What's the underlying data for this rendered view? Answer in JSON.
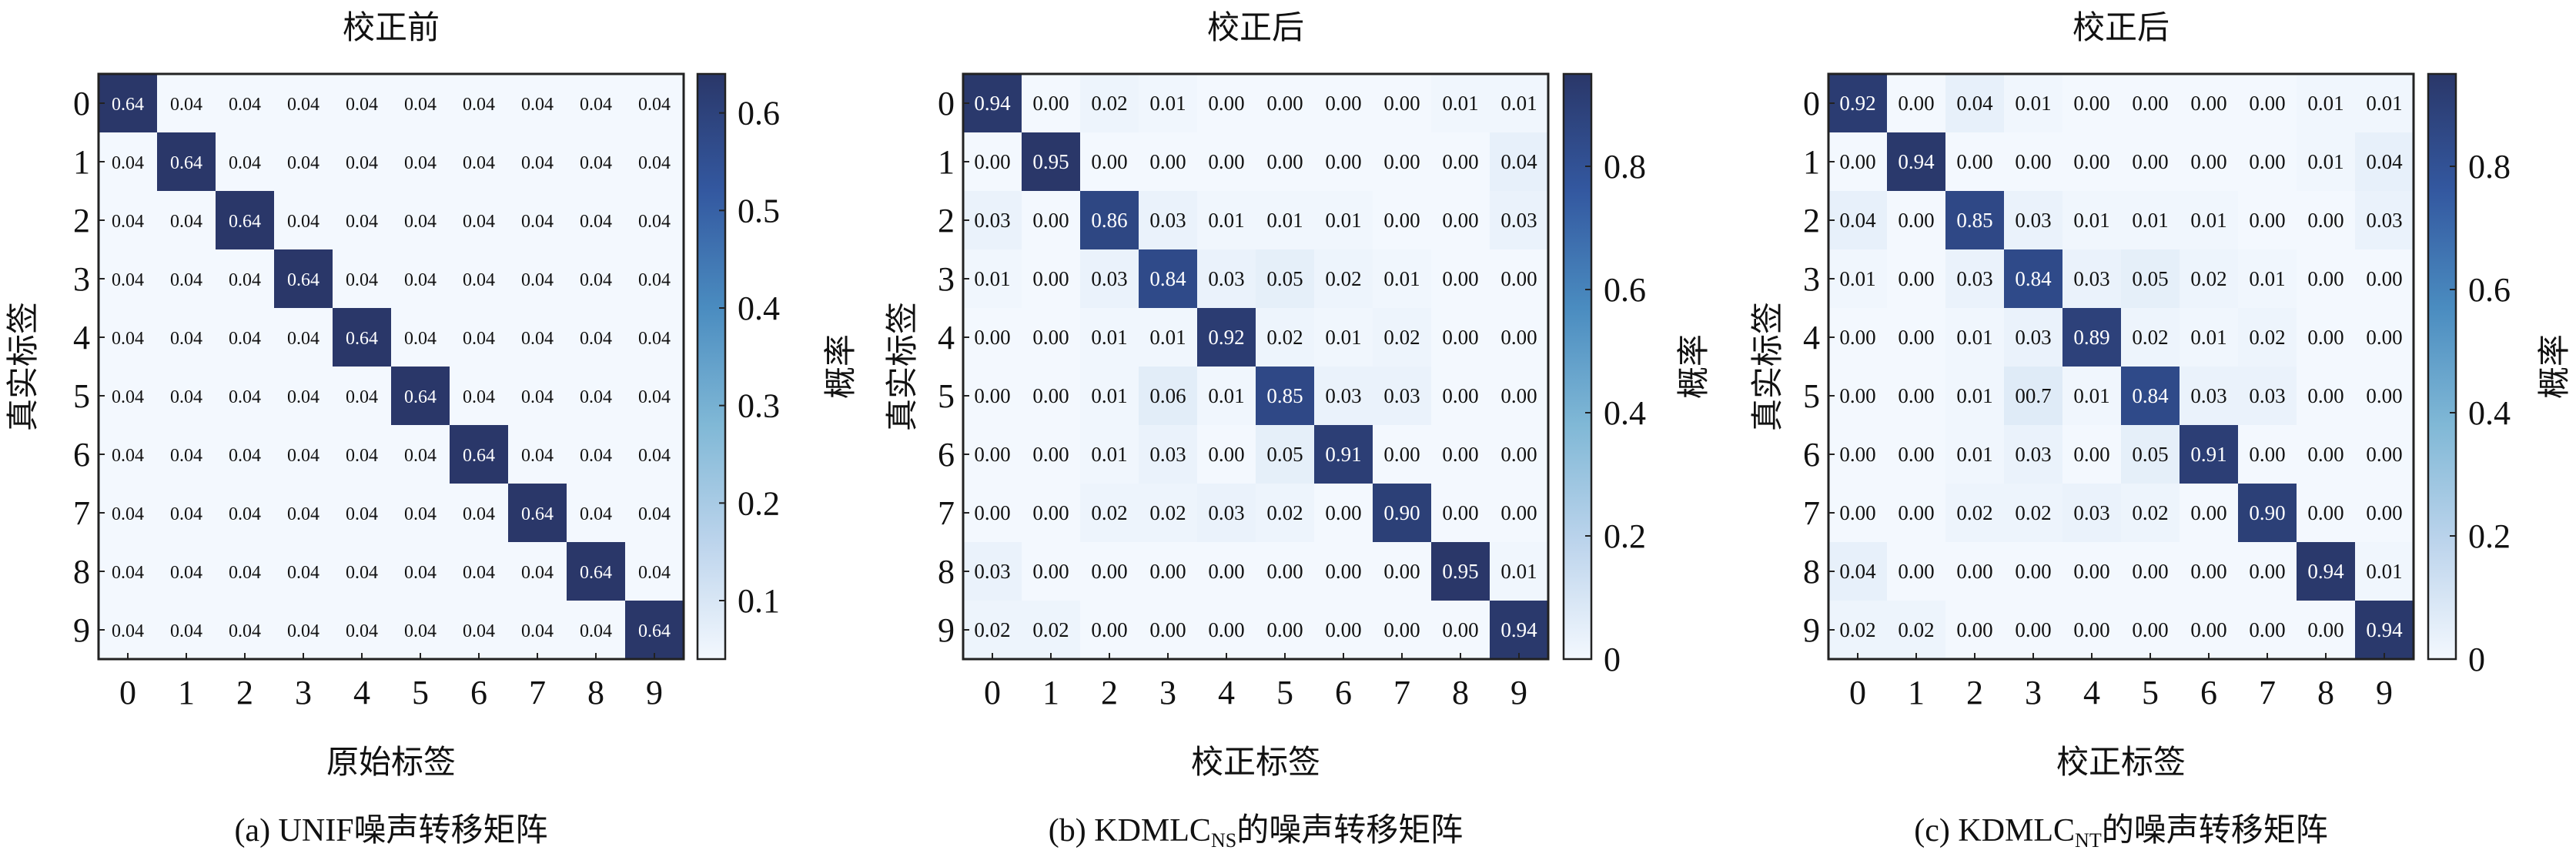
{
  "colormap": {
    "stops": [
      "#f3f8fe",
      "#bcd4ec",
      "#80b8d6",
      "#4a8cc0",
      "#3358a0",
      "#2a3769"
    ],
    "text_dark": "#111111",
    "text_light": "#ffffff"
  },
  "chart_data": [
    {
      "type": "heatmap",
      "title": "校正前",
      "xlabel": "原始标签",
      "ylabel": "真实标签",
      "colorbar_label": "概率",
      "caption": {
        "prefix": "(a)  UNIF噪声转移矩阵",
        "sub": "",
        "suffix": ""
      },
      "x_ticks": [
        "0",
        "1",
        "2",
        "3",
        "4",
        "5",
        "6",
        "7",
        "8",
        "9"
      ],
      "y_ticks": [
        "0",
        "1",
        "2",
        "3",
        "4",
        "5",
        "6",
        "7",
        "8",
        "9"
      ],
      "colorbar_ticks": [
        "0.1",
        "0.2",
        "0.3",
        "0.4",
        "0.5",
        "0.6"
      ],
      "colorbar_tick_values": [
        0.1,
        0.2,
        0.3,
        0.4,
        0.5,
        0.6
      ],
      "vlim": [
        0.04,
        0.64
      ],
      "matrix": [
        [
          "0.64",
          "0.04",
          "0.04",
          "0.04",
          "0.04",
          "0.04",
          "0.04",
          "0.04",
          "0.04",
          "0.04"
        ],
        [
          "0.04",
          "0.64",
          "0.04",
          "0.04",
          "0.04",
          "0.04",
          "0.04",
          "0.04",
          "0.04",
          "0.04"
        ],
        [
          "0.04",
          "0.04",
          "0.64",
          "0.04",
          "0.04",
          "0.04",
          "0.04",
          "0.04",
          "0.04",
          "0.04"
        ],
        [
          "0.04",
          "0.04",
          "0.04",
          "0.64",
          "0.04",
          "0.04",
          "0.04",
          "0.04",
          "0.04",
          "0.04"
        ],
        [
          "0.04",
          "0.04",
          "0.04",
          "0.04",
          "0.64",
          "0.04",
          "0.04",
          "0.04",
          "0.04",
          "0.04"
        ],
        [
          "0.04",
          "0.04",
          "0.04",
          "0.04",
          "0.04",
          "0.64",
          "0.04",
          "0.04",
          "0.04",
          "0.04"
        ],
        [
          "0.04",
          "0.04",
          "0.04",
          "0.04",
          "0.04",
          "0.04",
          "0.64",
          "0.04",
          "0.04",
          "0.04"
        ],
        [
          "0.04",
          "0.04",
          "0.04",
          "0.04",
          "0.04",
          "0.04",
          "0.04",
          "0.64",
          "0.04",
          "0.04"
        ],
        [
          "0.04",
          "0.04",
          "0.04",
          "0.04",
          "0.04",
          "0.04",
          "0.04",
          "0.04",
          "0.64",
          "0.04"
        ],
        [
          "0.04",
          "0.04",
          "0.04",
          "0.04",
          "0.04",
          "0.04",
          "0.04",
          "0.04",
          "0.04",
          "0.64"
        ]
      ]
    },
    {
      "type": "heatmap",
      "title": "校正后",
      "xlabel": "校正标签",
      "ylabel": "真实标签",
      "colorbar_label": "概率",
      "caption": {
        "prefix": "(b)  KDMLC",
        "sub": "NS",
        "suffix": "的噪声转移矩阵"
      },
      "x_ticks": [
        "0",
        "1",
        "2",
        "3",
        "4",
        "5",
        "6",
        "7",
        "8",
        "9"
      ],
      "y_ticks": [
        "0",
        "1",
        "2",
        "3",
        "4",
        "5",
        "6",
        "7",
        "8",
        "9"
      ],
      "colorbar_ticks": [
        "0",
        "0.2",
        "0.4",
        "0.6",
        "0.8"
      ],
      "colorbar_tick_values": [
        0,
        0.2,
        0.4,
        0.6,
        0.8
      ],
      "vlim": [
        0,
        0.95
      ],
      "matrix": [
        [
          "0.94",
          "0.00",
          "0.02",
          "0.01",
          "0.00",
          "0.00",
          "0.00",
          "0.00",
          "0.01",
          "0.01"
        ],
        [
          "0.00",
          "0.95",
          "0.00",
          "0.00",
          "0.00",
          "0.00",
          "0.00",
          "0.00",
          "0.00",
          "0.04"
        ],
        [
          "0.03",
          "0.00",
          "0.86",
          "0.03",
          "0.01",
          "0.01",
          "0.01",
          "0.00",
          "0.00",
          "0.03"
        ],
        [
          "0.01",
          "0.00",
          "0.03",
          "0.84",
          "0.03",
          "0.05",
          "0.02",
          "0.01",
          "0.00",
          "0.00"
        ],
        [
          "0.00",
          "0.00",
          "0.01",
          "0.01",
          "0.92",
          "0.02",
          "0.01",
          "0.02",
          "0.00",
          "0.00"
        ],
        [
          "0.00",
          "0.00",
          "0.01",
          "0.06",
          "0.01",
          "0.85",
          "0.03",
          "0.03",
          "0.00",
          "0.00"
        ],
        [
          "0.00",
          "0.00",
          "0.01",
          "0.03",
          "0.00",
          "0.05",
          "0.91",
          "0.00",
          "0.00",
          "0.00"
        ],
        [
          "0.00",
          "0.00",
          "0.02",
          "0.02",
          "0.03",
          "0.02",
          "0.00",
          "0.90",
          "0.00",
          "0.00"
        ],
        [
          "0.03",
          "0.00",
          "0.00",
          "0.00",
          "0.00",
          "0.00",
          "0.00",
          "0.00",
          "0.95",
          "0.01"
        ],
        [
          "0.02",
          "0.02",
          "0.00",
          "0.00",
          "0.00",
          "0.00",
          "0.00",
          "0.00",
          "0.00",
          "0.94"
        ]
      ]
    },
    {
      "type": "heatmap",
      "title": "校正后",
      "xlabel": "校正标签",
      "ylabel": "真实标签",
      "colorbar_label": "概率",
      "caption": {
        "prefix": "(c)  KDMLC",
        "sub": "NT",
        "suffix": "的噪声转移矩阵"
      },
      "x_ticks": [
        "0",
        "1",
        "2",
        "3",
        "4",
        "5",
        "6",
        "7",
        "8",
        "9"
      ],
      "y_ticks": [
        "0",
        "1",
        "2",
        "3",
        "4",
        "5",
        "6",
        "7",
        "8",
        "9"
      ],
      "colorbar_ticks": [
        "0",
        "0.2",
        "0.4",
        "0.6",
        "0.8"
      ],
      "colorbar_tick_values": [
        0,
        0.2,
        0.4,
        0.6,
        0.8
      ],
      "vlim": [
        0,
        0.95
      ],
      "matrix": [
        [
          "0.92",
          "0.00",
          "0.04",
          "0.01",
          "0.00",
          "0.00",
          "0.00",
          "0.00",
          "0.01",
          "0.01"
        ],
        [
          "0.00",
          "0.94",
          "0.00",
          "0.00",
          "0.00",
          "0.00",
          "0.00",
          "0.00",
          "0.01",
          "0.04"
        ],
        [
          "0.04",
          "0.00",
          "0.85",
          "0.03",
          "0.01",
          "0.01",
          "0.01",
          "0.00",
          "0.00",
          "0.03"
        ],
        [
          "0.01",
          "0.00",
          "0.03",
          "0.84",
          "0.03",
          "0.05",
          "0.02",
          "0.01",
          "0.00",
          "0.00"
        ],
        [
          "0.00",
          "0.00",
          "0.01",
          "0.03",
          "0.89",
          "0.02",
          "0.01",
          "0.02",
          "0.00",
          "0.00"
        ],
        [
          "0.00",
          "0.00",
          "0.01",
          "00.7",
          "0.01",
          "0.84",
          "0.03",
          "0.03",
          "0.00",
          "0.00"
        ],
        [
          "0.00",
          "0.00",
          "0.01",
          "0.03",
          "0.00",
          "0.05",
          "0.91",
          "0.00",
          "0.00",
          "0.00"
        ],
        [
          "0.00",
          "0.00",
          "0.02",
          "0.02",
          "0.03",
          "0.02",
          "0.00",
          "0.90",
          "0.00",
          "0.00"
        ],
        [
          "0.04",
          "0.00",
          "0.00",
          "0.00",
          "0.00",
          "0.00",
          "0.00",
          "0.00",
          "0.94",
          "0.01"
        ],
        [
          "0.02",
          "0.02",
          "0.00",
          "0.00",
          "0.00",
          "0.00",
          "0.00",
          "0.00",
          "0.00",
          "0.94"
        ]
      ]
    }
  ]
}
